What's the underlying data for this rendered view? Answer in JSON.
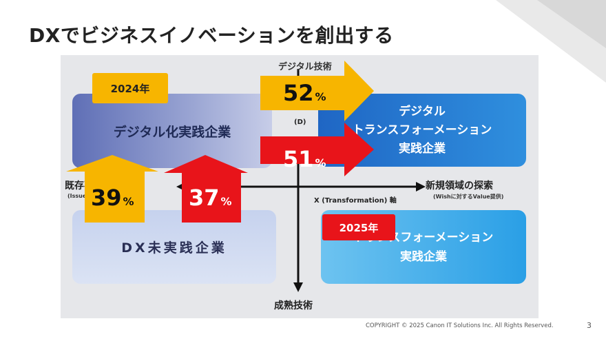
{
  "slide": {
    "title": "DXでビジネスイノベーションを創出する",
    "page_number": "3",
    "copyright": "COPYRIGHT © 2025 Canon IT Solutions Inc. All Rights Reserved."
  },
  "matrix": {
    "quadrants": {
      "top_left": "デジタル化実践企業",
      "top_right": [
        "デジタル",
        "トランスフォーメーション",
        "実践企業"
      ],
      "bottom_left": "DX未実践企業",
      "bottom_right": [
        "トランスフォーメーション",
        "実践企業"
      ]
    },
    "axes": {
      "top": "デジタル技術",
      "left": "既存事業の深化",
      "left_sub": "(Issue解決のSolution提供)",
      "right": "新規領域の探索",
      "right_sub": "(Wishに対するValue提供)",
      "x_axis": "X (Transformation) 軸",
      "bottom": "成熟技術",
      "vertical_fragment": "(D)"
    },
    "years": {
      "y2024": "2024年",
      "y2025": "2025年"
    },
    "percentages": {
      "dx_2024": {
        "value": "52",
        "unit": "%"
      },
      "dx_2025": {
        "value": "51",
        "unit": "%"
      },
      "digital_2024": {
        "value": "39",
        "unit": "%"
      },
      "digital_2025": {
        "value": "37",
        "unit": "%"
      }
    },
    "colors": {
      "yellow": "#f7b500",
      "red": "#e8141a"
    }
  }
}
